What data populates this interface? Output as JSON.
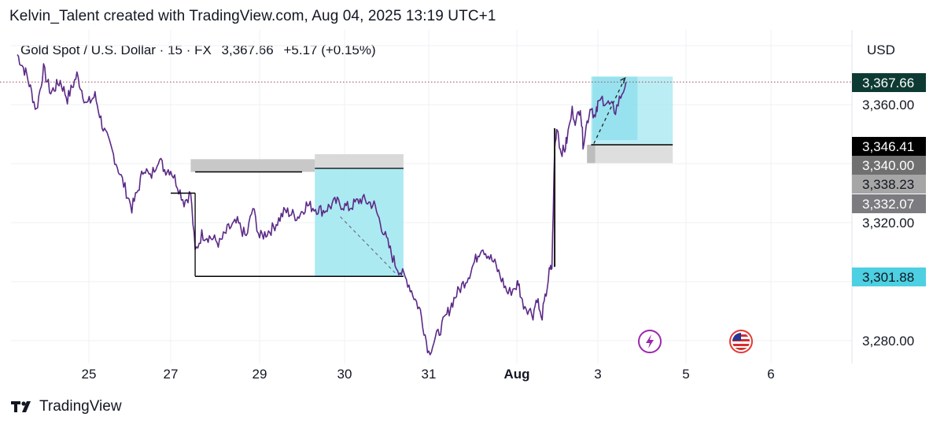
{
  "header": {
    "attribution": "Kelvin_Talent created with TradingView.com, Aug 04, 2025 13:19 UTC+1"
  },
  "legend": {
    "symbol": "Gold Spot / U.S. Dollar · 15 · FX",
    "price": "3,367.66",
    "change": "+5.17 (+0.15%)"
  },
  "axis": {
    "currency": "USD"
  },
  "footer": {
    "brand": "TradingView"
  },
  "colors": {
    "candle": "#5b2a86",
    "candle_dark": "#1a1a1a",
    "box_teal": "#9ee6f0",
    "box_grey": "#c8c8c8",
    "price_line": "#a0455a"
  },
  "icons": [
    "lightning-icon",
    "us-flag-icon"
  ],
  "chart_data": {
    "type": "line",
    "title": "Gold Spot / U.S. Dollar · 15 · FX",
    "ylabel": "USD",
    "ylim": [
      3272,
      3385
    ],
    "y_ticks": [
      {
        "value": 3360,
        "label": "3,360.00"
      },
      {
        "value": 3320,
        "label": "3,320.00"
      },
      {
        "value": 3280,
        "label": "3,280.00"
      }
    ],
    "x_ticks": [
      {
        "t": 25,
        "label": "25"
      },
      {
        "t": 27,
        "label": "27"
      },
      {
        "t": 29,
        "label": "29"
      },
      {
        "t": 30,
        "label": "30"
      },
      {
        "t": 31,
        "label": "31"
      },
      {
        "t": 32,
        "label": "Aug"
      },
      {
        "t": 35,
        "label": "3"
      },
      {
        "t": 36,
        "label": "5"
      },
      {
        "t": 37,
        "label": "6"
      }
    ],
    "price_badges": [
      {
        "value": 3367.66,
        "label": "3,367.66",
        "style": "current"
      },
      {
        "value": 3346.41,
        "label": "3,346.41",
        "style": "black"
      },
      {
        "value": 3340.0,
        "label": "3,340.00",
        "style": "grey-dark"
      },
      {
        "value": 3338.23,
        "label": "3,338.23",
        "style": "grey-light"
      },
      {
        "value": 3332.07,
        "label": "3,332.07",
        "style": "grey-mid"
      },
      {
        "value": 3301.88,
        "label": "3,301.88",
        "style": "teal"
      }
    ],
    "series": [
      {
        "values": [
          [
            23.5,
            3377
          ],
          [
            23.7,
            3370
          ],
          [
            23.9,
            3358
          ],
          [
            24.05,
            3372
          ],
          [
            24.2,
            3364
          ],
          [
            24.4,
            3368
          ],
          [
            24.55,
            3362
          ],
          [
            24.75,
            3370
          ],
          [
            24.95,
            3360
          ],
          [
            25.15,
            3363
          ],
          [
            25.35,
            3352
          ],
          [
            25.6,
            3343
          ],
          [
            25.85,
            3333
          ],
          [
            26.05,
            3325
          ],
          [
            26.2,
            3331
          ],
          [
            26.35,
            3339
          ],
          [
            26.5,
            3335
          ],
          [
            26.7,
            3342
          ],
          [
            26.85,
            3338
          ],
          [
            27.0,
            3338
          ],
          [
            27.15,
            3333
          ],
          [
            27.3,
            3327
          ],
          [
            27.45,
            3330
          ],
          [
            27.55,
            3310
          ],
          [
            27.7,
            3316
          ],
          [
            27.9,
            3315
          ],
          [
            28.1,
            3313
          ],
          [
            28.3,
            3318
          ],
          [
            28.5,
            3320
          ],
          [
            28.7,
            3315
          ],
          [
            28.85,
            3325
          ],
          [
            29.0,
            3315
          ],
          [
            29.15,
            3318
          ],
          [
            29.3,
            3324
          ],
          [
            29.45,
            3322
          ],
          [
            29.55,
            3326
          ],
          [
            29.75,
            3324
          ],
          [
            29.9,
            3327
          ],
          [
            30.05,
            3325
          ],
          [
            30.2,
            3328
          ],
          [
            30.35,
            3326
          ],
          [
            30.5,
            3314
          ],
          [
            30.6,
            3306
          ],
          [
            30.75,
            3300
          ],
          [
            30.9,
            3290
          ],
          [
            31.0,
            3276
          ],
          [
            31.15,
            3285
          ],
          [
            31.3,
            3295
          ],
          [
            31.45,
            3302
          ],
          [
            31.6,
            3312
          ],
          [
            31.75,
            3306
          ],
          [
            31.9,
            3296
          ],
          [
            32.05,
            3300
          ],
          [
            32.2,
            3293
          ],
          [
            32.4,
            3291
          ],
          [
            32.6,
            3289
          ],
          [
            32.75,
            3295
          ],
          [
            32.9,
            3287
          ],
          [
            33.05,
            3294
          ],
          [
            33.2,
            3303
          ],
          [
            33.3,
            3305
          ],
          [
            33.4,
            3345
          ],
          [
            33.5,
            3353
          ],
          [
            33.6,
            3345
          ],
          [
            33.75,
            3344
          ],
          [
            33.85,
            3348
          ],
          [
            34.05,
            3358
          ],
          [
            34.2,
            3354
          ],
          [
            34.35,
            3360
          ],
          [
            34.45,
            3347
          ],
          [
            34.6,
            3354
          ],
          [
            34.75,
            3360
          ],
          [
            34.9,
            3355
          ],
          [
            35.05,
            3362
          ],
          [
            35.2,
            3358
          ],
          [
            35.32,
            3367.66
          ]
        ]
      }
    ]
  }
}
